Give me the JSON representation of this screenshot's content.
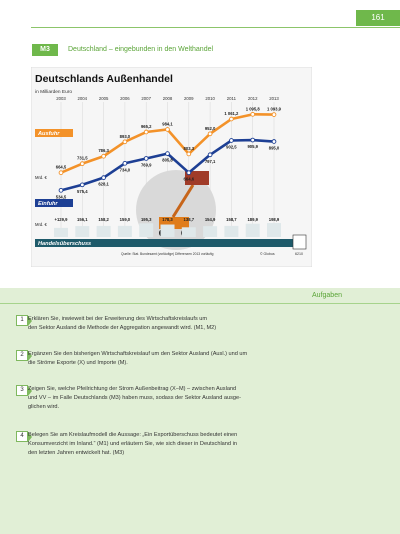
{
  "page": {
    "number": "161"
  },
  "section": {
    "tag": "M3",
    "title": "Deutschland – eingebunden in den Welthandel"
  },
  "chart_data": {
    "type": "line",
    "title": "Deutschlands Außenhandel",
    "subtitle": "in Milliarden Euro",
    "categories": [
      "2003",
      "2004",
      "2005",
      "2006",
      "2007",
      "2008",
      "2009",
      "2010",
      "2011",
      "2012",
      "2013"
    ],
    "ylim": [
      500,
      1150
    ],
    "series": [
      {
        "name": "Ausfuhr",
        "color": "#f39229",
        "values": [
          664.5,
          731.5,
          786.3,
          893.0,
          965.2,
          984.1,
          803.3,
          952.0,
          1061.2,
          1095.8,
          1093.9
        ],
        "labels": [
          "664,5",
          "731,5",
          "786,3",
          "893,0",
          "965,2",
          "984,1",
          "803,3",
          "952,0",
          "1 061,2",
          "1 095,8",
          "1 093,9"
        ]
      },
      {
        "name": "Einfuhr",
        "color": "#1d3f94",
        "values": [
          534.5,
          575.4,
          628.1,
          734.0,
          769.9,
          805.8,
          664.6,
          797.1,
          902.5,
          905.9,
          895.0
        ],
        "labels": [
          "534,5",
          "575,4",
          "628,1",
          "734,0",
          "769,9",
          "805,8",
          "664,6",
          "797,1",
          "902,5",
          "905,9",
          "895,0"
        ]
      },
      {
        "name": "Handelsüberschuss",
        "color": "#1e5a6a",
        "values": [
          129.9,
          156.1,
          158.2,
          159.0,
          195.3,
          178.3,
          138.7,
          154.9,
          158.7,
          189.9,
          198.9
        ],
        "labels": [
          "+129,9",
          "156,1",
          "158,2",
          "159,0",
          "195,3",
          "178,3",
          "138,7",
          "154,9",
          "158,7",
          "189,9",
          "198,9"
        ]
      }
    ],
    "unit_labels": {
      "ausfuhr_start": "Mrd. €",
      "einfuhr_start": "Mrd. €",
      "surplus_start": "Mrd. €"
    },
    "source": "Quelle: Stat. Bundesamt (vorläufige) Differenzen 2013 vorläufig",
    "credit": "© Globus",
    "code": "6210",
    "grid": true
  },
  "tasks": {
    "heading": "Aufgaben",
    "items": [
      {
        "num": "1",
        "lines": [
          "Erklären Sie, inwieweit bei der Erweiterung des Wirtschaftskreislaufs um",
          "den Sektor Ausland die Methode der Aggregation angewandt wird. (M1, M2)"
        ]
      },
      {
        "num": "2",
        "lines": [
          "Ergänzen Sie den bisherigen Wirtschaftskreislauf um den Sektor Ausland (Ausl.) und um",
          "die Ströme Exporte (X) und Importe (M)."
        ]
      },
      {
        "num": "3",
        "lines": [
          "Zeigen Sie, welche Pfeilrichtung der Strom Außenbeitrag (X−M) – zwischen Ausland",
          "und VV – im Falle Deutschlands (M3) haben muss, sodass der Sektor Ausland ausge-",
          "glichen wird."
        ]
      },
      {
        "num": "4",
        "lines": [
          "Belegen Sie am Kreislaufmodell die Aussage: „Ein Exportüberschuss bedeutet einen",
          "Konsumverzicht im Inland.“ (M1) und erläutern Sie, wie sich dieser in Deutschland in",
          "den letzten Jahren entwickelt hat. (M3)"
        ]
      }
    ]
  }
}
